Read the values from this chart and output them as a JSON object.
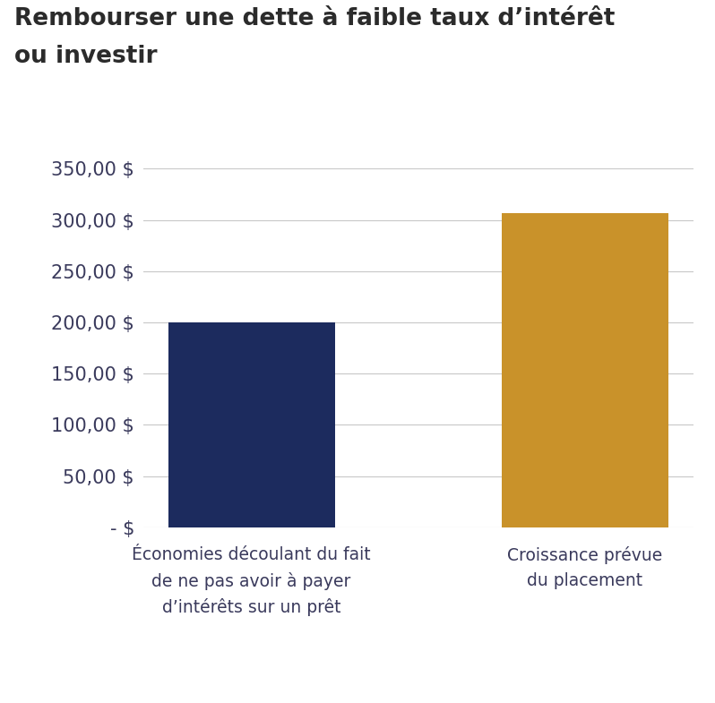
{
  "title_line1": "Rembourser une dette à faible taux d’intérêt",
  "title_line2": "ou investir",
  "categories": [
    "Économies découlant du fait\nde ne pas avoir à payer\nd’intérêts sur un prêt",
    "Croissance prévue\ndu placement"
  ],
  "values": [
    200,
    307
  ],
  "bar_colors": [
    "#1c2b5e",
    "#c9922a"
  ],
  "ylim": [
    0,
    350
  ],
  "yticks": [
    0,
    50,
    100,
    150,
    200,
    250,
    300,
    350
  ],
  "ytick_labels": [
    "- $",
    "50,00 $",
    "100,00 $",
    "150,00 $",
    "200,00 $",
    "250,00 $",
    "300,00 $",
    "350,00 $"
  ],
  "background_color": "#ffffff",
  "grid_color": "#c8c8c8",
  "title_fontsize": 19,
  "tick_fontsize": 15,
  "xlabel_fontsize": 13.5,
  "title_color": "#2b2b2b",
  "tick_color": "#3a3a5c"
}
